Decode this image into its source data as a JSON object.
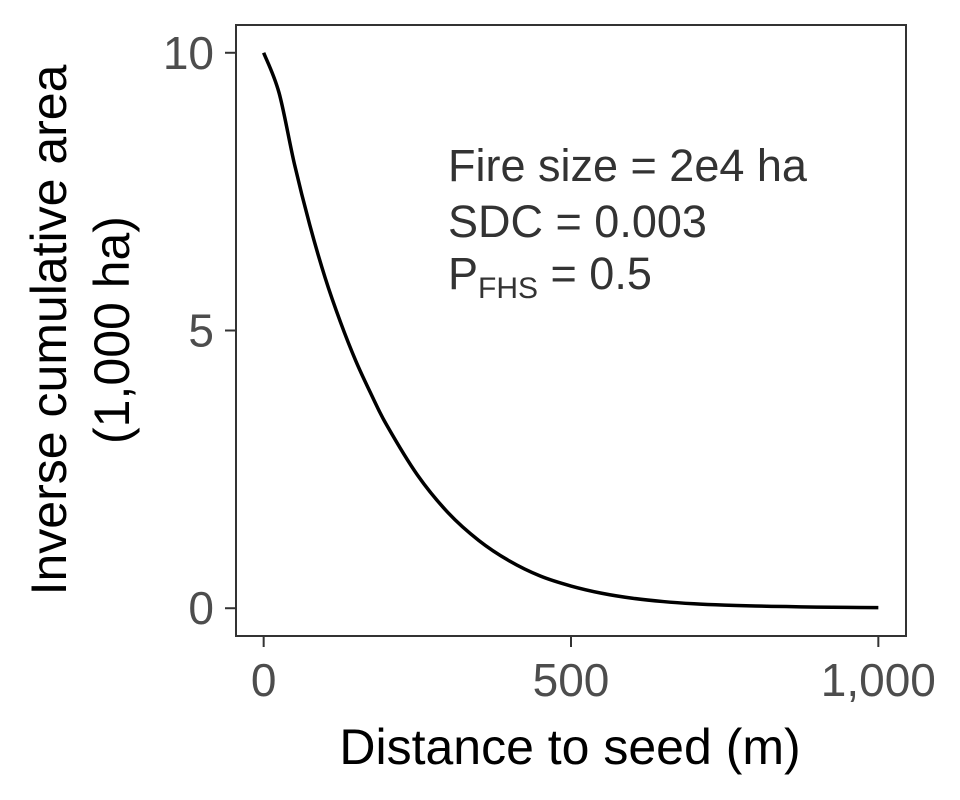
{
  "chart_data": {
    "type": "line",
    "title": "",
    "xlabel": "Distance to seed (m)",
    "ylabel_line1": "Inverse cumulative area",
    "ylabel_line2": "(1,000 ha)",
    "xlim": [
      -45,
      1045
    ],
    "ylim": [
      -0.5,
      10.5
    ],
    "x_ticks": [
      0,
      500,
      1000
    ],
    "x_tick_labels": [
      "0",
      "500",
      "1,000"
    ],
    "y_ticks": [
      0,
      5,
      10
    ],
    "y_tick_labels": [
      "0",
      "5",
      "10"
    ],
    "grid": false,
    "series": [
      {
        "color": "#000000",
        "x": [
          0,
          25,
          50,
          75,
          100,
          125,
          150,
          175,
          200,
          250,
          300,
          350,
          400,
          450,
          500,
          550,
          600,
          650,
          700,
          750,
          800,
          850,
          900,
          950,
          1000
        ],
        "y": [
          10.0,
          9.28,
          8.0,
          6.9,
          5.95,
          5.15,
          4.45,
          3.85,
          3.3,
          2.4,
          1.72,
          1.22,
          0.85,
          0.58,
          0.4,
          0.27,
          0.18,
          0.12,
          0.08,
          0.055,
          0.04,
          0.03,
          0.02,
          0.015,
          0.01
        ]
      }
    ],
    "annotations": {
      "line1": "Fire size = 2e4 ha",
      "line2": "SDC = 0.003",
      "line3_prefix": "P",
      "line3_subscript": "FHS",
      "line3_suffix": " = 0.5"
    }
  }
}
